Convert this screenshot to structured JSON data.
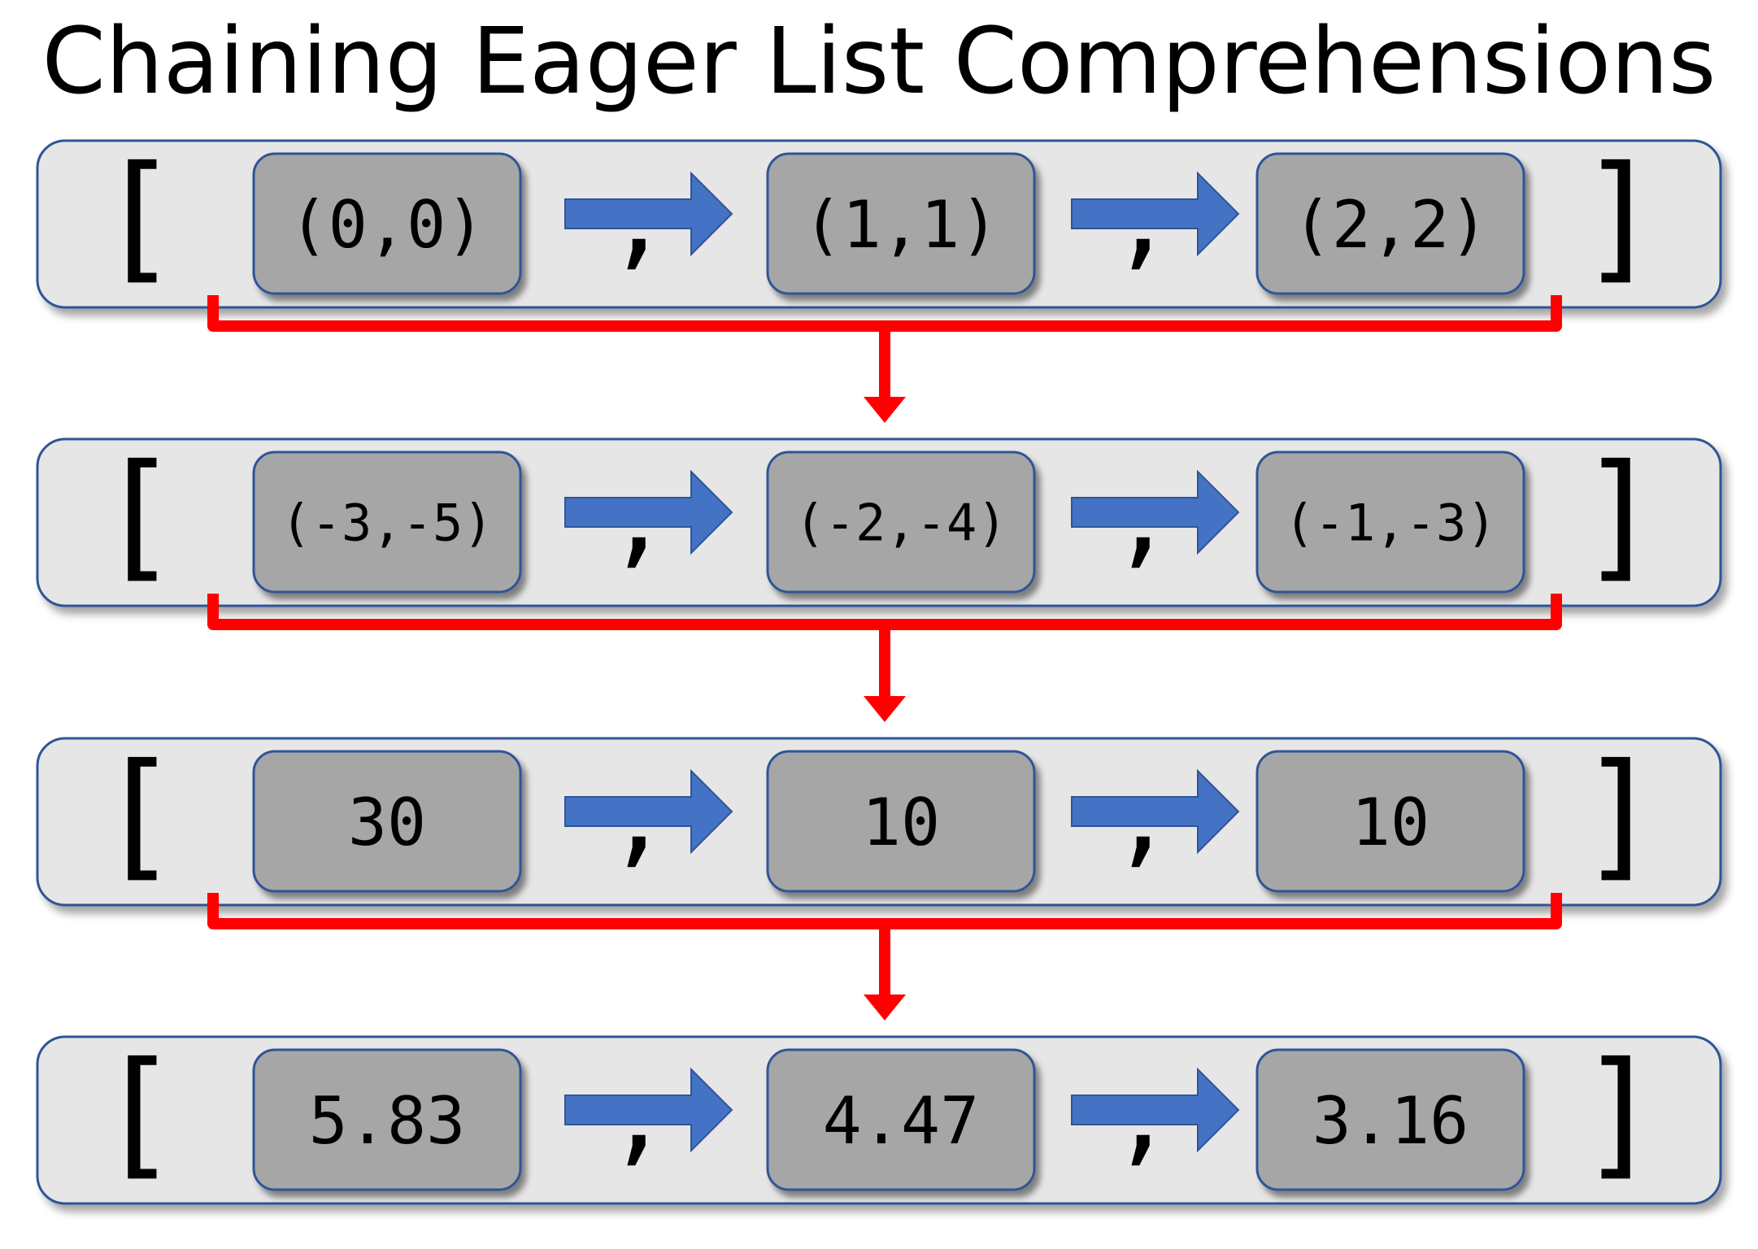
{
  "title": "Chaining Eager List Comprehensions",
  "symbols": {
    "open_bracket": "[",
    "close_bracket": "]",
    "separator": ","
  },
  "rows": [
    {
      "items": [
        "(0,0)",
        "(1,1)",
        "(2,2)"
      ]
    },
    {
      "items": [
        "(-3,-5)",
        "(-2,-4)",
        "(-1,-3)"
      ]
    },
    {
      "items": [
        "30",
        "10",
        "10"
      ]
    },
    {
      "items": [
        "5.83",
        "4.47",
        "3.16"
      ]
    }
  ],
  "colors": {
    "panel_fill": "#e7e6e6",
    "panel_border": "#2f5597",
    "item_fill": "#a6a6a6",
    "flow_arrow": "#4472c4",
    "chain_connector": "#ff0000"
  }
}
